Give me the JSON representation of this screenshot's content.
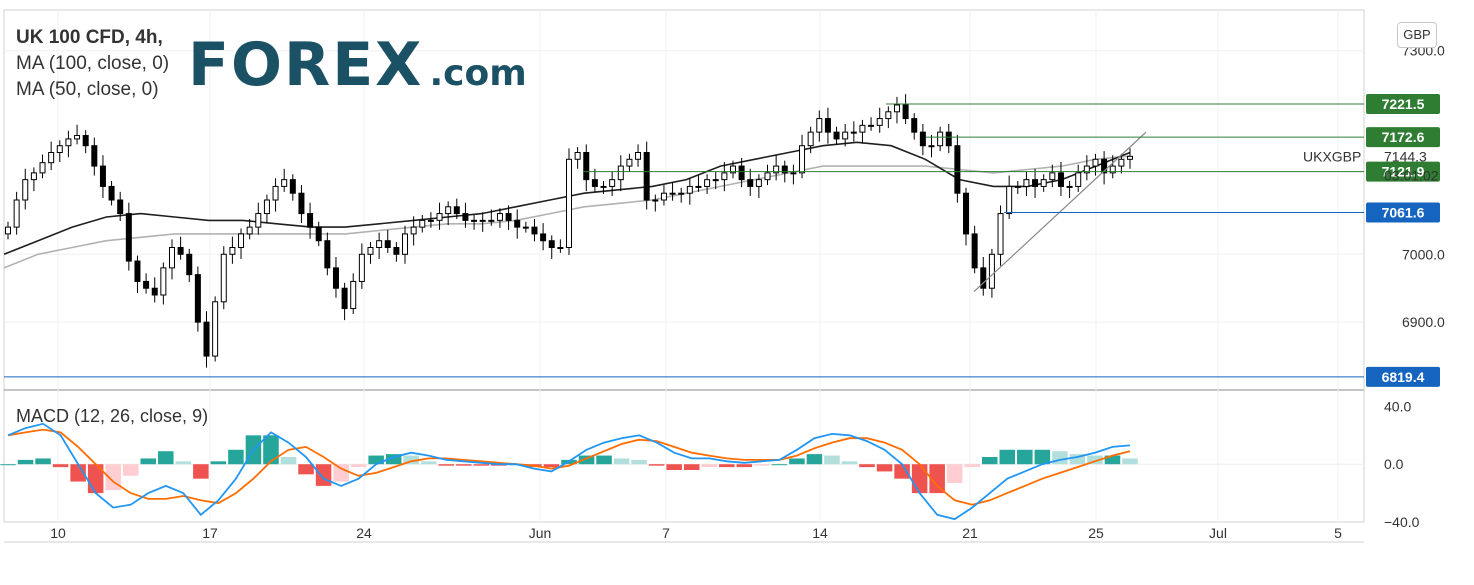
{
  "header": {
    "title": "UK 100 CFD, 4h,",
    "ma1": "MA (100, close, 0)",
    "ma2": "MA (50, close, 0)",
    "currency_button": "GBP"
  },
  "logo": {
    "text_main": "FOREX",
    "text_suffix": ".com"
  },
  "colors": {
    "up": "#26a69a",
    "down": "#ef5350",
    "candle": "#000000",
    "ma50": "#1f1f1f",
    "ma100": "#b2b2b2",
    "level_green": "#2e7d32",
    "level_blue": "#1565c0",
    "macd_line": "#2196f3",
    "signal_line": "#ff6d00",
    "hist_up_strong": "#26a69a",
    "hist_up_weak": "#b2dfdb",
    "hist_down_strong": "#ef5350",
    "hist_down_weak": "#ffcdd2"
  },
  "chart_data": [
    {
      "type": "candlestick",
      "title": "UK 100 CFD, 4h,",
      "symbol_label": "UKXGBP",
      "last_price": 7144.3,
      "countdown": "03:01:02",
      "ylim": [
        6800,
        7360
      ],
      "y_ticks": [
        "7300.0",
        "7000.0",
        "6900.0"
      ],
      "x_ticks": [
        "10",
        "17",
        "24",
        "Jun",
        "7",
        "14",
        "21",
        "25",
        "Jul",
        "5"
      ],
      "price_levels": [
        {
          "label": "7221.5",
          "value": 7221.5,
          "color": "green"
        },
        {
          "label": "7172.6",
          "value": 7172.6,
          "color": "green"
        },
        {
          "label": "7121.9",
          "value": 7121.9,
          "color": "green"
        },
        {
          "label": "7061.6",
          "value": 7061.6,
          "color": "blue"
        },
        {
          "label": "6819.4",
          "value": 6819.4,
          "color": "blue"
        }
      ],
      "closes": [
        7040,
        7080,
        7110,
        7120,
        7135,
        7150,
        7160,
        7170,
        7175,
        7160,
        7130,
        7100,
        7080,
        7060,
        6990,
        6960,
        6950,
        6940,
        6980,
        7010,
        7000,
        6970,
        6900,
        6850,
        6930,
        7000,
        7010,
        7030,
        7040,
        7060,
        7080,
        7100,
        7110,
        7090,
        7060,
        7040,
        7020,
        6980,
        6950,
        6920,
        6960,
        7000,
        7010,
        7020,
        7010,
        7000,
        7030,
        7040,
        7050,
        7050,
        7060,
        7070,
        7060,
        7050,
        7050,
        7050,
        7050,
        7060,
        7050,
        7040,
        7040,
        7030,
        7020,
        7010,
        7010,
        7140,
        7150,
        7110,
        7100,
        7100,
        7110,
        7130,
        7140,
        7150,
        7080,
        7080,
        7090,
        7090,
        7090,
        7100,
        7100,
        7110,
        7110,
        7120,
        7130,
        7110,
        7100,
        7110,
        7120,
        7130,
        7120,
        7120,
        7160,
        7180,
        7200,
        7180,
        7170,
        7180,
        7180,
        7190,
        7190,
        7200,
        7210,
        7220,
        7200,
        7180,
        7160,
        7160,
        7180,
        7160,
        7090,
        7030,
        6980,
        6950,
        7000,
        7060,
        7100,
        7100,
        7110,
        7100,
        7110,
        7120,
        7100,
        7100,
        7120,
        7130,
        7140,
        7120,
        7130,
        7140,
        7144.3
      ],
      "ma50": [
        7000,
        7020,
        7040,
        7055,
        7060,
        7055,
        7050,
        7050,
        7045,
        7040,
        7040,
        7045,
        7050,
        7055,
        7060,
        7070,
        7080,
        7090,
        7095,
        7100,
        7110,
        7130,
        7140,
        7150,
        7160,
        7165,
        7160,
        7140,
        7110,
        7100,
        7100,
        7110,
        7130,
        7150
      ],
      "ma100": [
        6980,
        7000,
        7010,
        7020,
        7025,
        7030,
        7030,
        7030,
        7030,
        7030,
        7030,
        7035,
        7040,
        7045,
        7045,
        7050,
        7060,
        7070,
        7075,
        7080,
        7090,
        7100,
        7110,
        7120,
        7130,
        7130,
        7130,
        7130,
        7125,
        7120,
        7125,
        7130,
        7140,
        7145
      ]
    },
    {
      "type": "macd",
      "title": "MACD (12, 26, close, 9)",
      "ylim": [
        -40,
        50
      ],
      "y_ticks": [
        "40.0",
        "0.0",
        "-40.0"
      ],
      "macd": [
        20,
        25,
        28,
        20,
        0,
        -20,
        -30,
        -28,
        -20,
        -15,
        -20,
        -35,
        -25,
        -10,
        10,
        22,
        15,
        5,
        -10,
        -15,
        -10,
        0,
        5,
        8,
        6,
        3,
        2,
        1,
        0,
        0,
        -3,
        -5,
        2,
        10,
        15,
        18,
        20,
        15,
        8,
        4,
        4,
        2,
        1,
        2,
        3,
        10,
        18,
        21,
        20,
        16,
        10,
        0,
        -20,
        -35,
        -38,
        -30,
        -20,
        -10,
        -5,
        0,
        3,
        5,
        8,
        12,
        13
      ],
      "signal": [
        20,
        22,
        24,
        22,
        12,
        0,
        -12,
        -20,
        -24,
        -24,
        -22,
        -25,
        -27,
        -20,
        -10,
        2,
        10,
        12,
        5,
        -3,
        -8,
        -6,
        -2,
        2,
        4,
        4,
        3,
        2,
        1,
        0,
        -1,
        -3,
        -1,
        4,
        9,
        14,
        17,
        16,
        12,
        8,
        6,
        4,
        3,
        3,
        3,
        6,
        11,
        15,
        18,
        18,
        15,
        10,
        0,
        -15,
        -25,
        -28,
        -25,
        -20,
        -15,
        -10,
        -6,
        -2,
        2,
        6,
        9
      ]
    }
  ]
}
